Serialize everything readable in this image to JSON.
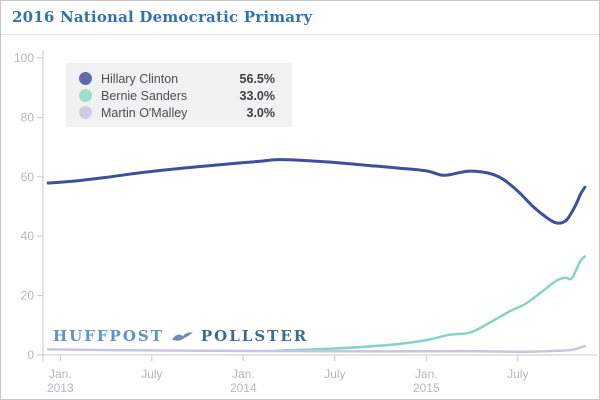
{
  "header": {
    "title": "2016 National Democratic Primary"
  },
  "legend": {
    "items": [
      {
        "name": "Hillary Clinton",
        "value": "56.5%",
        "color": "#5f6dad"
      },
      {
        "name": "Bernie Sanders",
        "value": "33.0%",
        "color": "#9edccb"
      },
      {
        "name": "Martin O'Malley",
        "value": "3.0%",
        "color": "#cfccea"
      }
    ]
  },
  "logo": {
    "left": "HUFFPOST",
    "right": "POLLSTER",
    "icon": "pollster-bird-icon"
  },
  "colors": {
    "title": "#3471ae",
    "axis": "#c9c9c9",
    "axis_label": "#b3b8bf",
    "legend_bg": "#f1f1f2",
    "clinton_line": "#3c50a0",
    "sanders_line": "#80d6c1",
    "omalley_line": "#c8c5e3",
    "widget_border": "#c6c6c6"
  },
  "chart_data": {
    "type": "line",
    "title": "2016 National Democratic Primary",
    "xlabel": "",
    "ylabel": "",
    "x_unit": "months since Jan 2013",
    "x_range_months": [
      -1.1,
      35.2
    ],
    "y_axis": {
      "ticks": [
        0,
        20,
        40,
        60,
        80,
        100
      ],
      "range": [
        0,
        100
      ]
    },
    "x_axis": {
      "ticks": [
        {
          "m": 0,
          "label": "Jan.",
          "sub": "2013"
        },
        {
          "m": 6,
          "label": "July"
        },
        {
          "m": 12,
          "label": "Jan.",
          "sub": "2014"
        },
        {
          "m": 18,
          "label": "July"
        },
        {
          "m": 24,
          "label": "Jan.",
          "sub": "2015"
        },
        {
          "m": 30,
          "label": "July"
        }
      ]
    },
    "grid": false,
    "legend_position": "top-left",
    "series": [
      {
        "name": "Hillary Clinton",
        "color": "#3c50a0",
        "width": 3,
        "final_value": 56.5,
        "points": [
          [
            -0.8,
            57.9
          ],
          [
            1,
            58.6
          ],
          [
            3,
            59.8
          ],
          [
            5,
            61.2
          ],
          [
            7,
            62.4
          ],
          [
            9,
            63.4
          ],
          [
            11,
            64.3
          ],
          [
            13,
            65.2
          ],
          [
            14.3,
            65.8
          ],
          [
            16,
            65.5
          ],
          [
            18,
            64.8
          ],
          [
            20,
            63.9
          ],
          [
            22,
            63.0
          ],
          [
            24,
            62.0
          ],
          [
            25.2,
            60.5
          ],
          [
            26.7,
            61.9
          ],
          [
            28,
            61.3
          ],
          [
            29,
            59.3
          ],
          [
            30,
            55.2
          ],
          [
            31,
            50.0
          ],
          [
            32,
            45.9
          ],
          [
            32.6,
            44.4
          ],
          [
            33.2,
            45.5
          ],
          [
            33.8,
            50.5
          ],
          [
            34.1,
            54.0
          ],
          [
            34.4,
            56.5
          ]
        ]
      },
      {
        "name": "Bernie Sanders",
        "color": "#80d6c1",
        "width": 2.5,
        "final_value": 33.0,
        "points": [
          [
            14,
            1.4
          ],
          [
            16,
            1.8
          ],
          [
            18,
            2.2
          ],
          [
            20,
            2.8
          ],
          [
            22,
            3.6
          ],
          [
            24,
            5.0
          ],
          [
            25.5,
            6.8
          ],
          [
            26.9,
            7.6
          ],
          [
            28.2,
            11.0
          ],
          [
            29.5,
            14.8
          ],
          [
            30.5,
            17.2
          ],
          [
            31.5,
            21.0
          ],
          [
            32.5,
            24.9
          ],
          [
            33.1,
            26.0
          ],
          [
            33.5,
            25.6
          ],
          [
            33.8,
            28.3
          ],
          [
            34.1,
            31.6
          ],
          [
            34.4,
            33.2
          ]
        ]
      },
      {
        "name": "Martin O'Malley",
        "color": "#c8c5e3",
        "width": 2.5,
        "final_value": 3.0,
        "points": [
          [
            -0.8,
            1.9
          ],
          [
            4,
            1.6
          ],
          [
            10,
            1.4
          ],
          [
            16,
            1.3
          ],
          [
            22,
            1.2
          ],
          [
            26,
            1.3
          ],
          [
            28,
            1.2
          ],
          [
            30.2,
            1.1
          ],
          [
            32,
            1.3
          ],
          [
            33.5,
            1.7
          ],
          [
            34.4,
            3.0
          ]
        ]
      }
    ]
  }
}
